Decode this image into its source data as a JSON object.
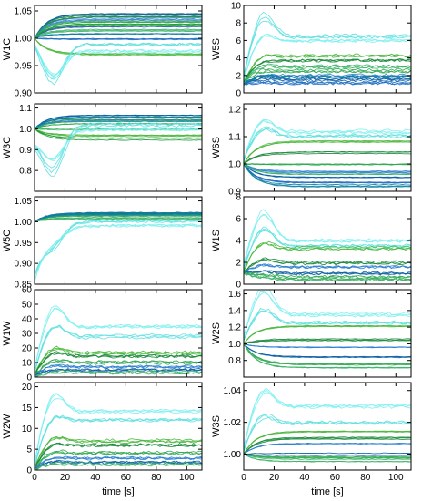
{
  "figure": {
    "xlabel": "time [s]"
  },
  "chart_data": [
    {
      "type": "line",
      "ylabel": "W1C",
      "xlim": [
        0,
        110
      ],
      "ylim": [
        0.9,
        1.06
      ],
      "xticks": [
        "0",
        "20",
        "40",
        "60",
        "80",
        "100"
      ],
      "yticks": [
        "0.90",
        "0.95",
        "1.00",
        "1.05"
      ],
      "ytick_values": [
        0.9,
        0.95,
        1.0,
        1.05
      ],
      "curves": [
        {
          "color": "#0b5fa5",
          "start": 1.0,
          "end": 1.045,
          "peak": 0.0
        },
        {
          "color": "#1a8a3a",
          "start": 1.0,
          "end": 1.04,
          "peak": 0.0
        },
        {
          "color": "#2e7fd0",
          "start": 1.0,
          "end": 1.035,
          "peak": 0.0
        },
        {
          "color": "#2fa84f",
          "start": 1.0,
          "end": 1.03,
          "peak": 0.0
        },
        {
          "color": "#2c5fa8",
          "start": 1.0,
          "end": 1.02,
          "peak": 0.0
        },
        {
          "color": "#3fb46a",
          "start": 1.0,
          "end": 1.015,
          "peak": 0.0
        },
        {
          "color": "#0b7fa0",
          "start": 1.0,
          "end": 1.01,
          "peak": 0.0
        },
        {
          "color": "#1f6ec4",
          "start": 1.0,
          "end": 1.0,
          "peak": 0.0
        },
        {
          "color": "#4ab83c",
          "start": 1.0,
          "end": 0.97,
          "peak": 0.0
        },
        {
          "color": "#5fe0e0",
          "start": 1.0,
          "end": 0.99,
          "peak": -0.07
        },
        {
          "color": "#7ff0f0",
          "start": 1.0,
          "end": 0.975,
          "peak": -0.05
        },
        {
          "color": "#1f9c3a",
          "start": 1.0,
          "end": 1.025,
          "peak": 0.0
        }
      ]
    },
    {
      "type": "line",
      "ylabel": "W5S",
      "xlim": [
        0,
        110
      ],
      "ylim": [
        0,
        10
      ],
      "xticks": [
        "0",
        "20",
        "40",
        "60",
        "80",
        "100"
      ],
      "yticks": [
        "0",
        "2",
        "4",
        "6",
        "8",
        "10"
      ],
      "ytick_values": [
        0,
        2,
        4,
        6,
        8,
        10
      ],
      "curves": [
        {
          "color": "#5fe0e0",
          "start": 1.0,
          "end": 6.5,
          "peak": 3.5
        },
        {
          "color": "#7ff0f0",
          "start": 1.0,
          "end": 6.0,
          "peak": 1.5
        },
        {
          "color": "#4ab83c",
          "start": 1.0,
          "end": 4.2,
          "peak": 0.6
        },
        {
          "color": "#1a8a3a",
          "start": 1.0,
          "end": 3.8,
          "peak": 0.3
        },
        {
          "color": "#2fa84f",
          "start": 1.0,
          "end": 2.5,
          "peak": 0.3
        },
        {
          "color": "#2e7fd0",
          "start": 1.0,
          "end": 2.0,
          "peak": 0.2
        },
        {
          "color": "#0b5fa5",
          "start": 1.0,
          "end": 1.5,
          "peak": 0.2
        },
        {
          "color": "#1f6ec4",
          "start": 1.0,
          "end": 1.2,
          "peak": 0.1
        },
        {
          "color": "#0b7fa0",
          "start": 1.0,
          "end": 1.8,
          "peak": 0.3
        },
        {
          "color": "#3fb46a",
          "start": 1.0,
          "end": 3.0,
          "peak": 0.5
        }
      ]
    },
    {
      "type": "line",
      "ylabel": "W3C",
      "xlim": [
        0,
        110
      ],
      "ylim": [
        0.7,
        1.12
      ],
      "xticks": [
        "0",
        "20",
        "40",
        "60",
        "80",
        "100"
      ],
      "yticks": [
        "0.8",
        "0.9",
        "1.0",
        "1.1"
      ],
      "ytick_values": [
        0.8,
        0.9,
        1.0,
        1.1
      ],
      "curves": [
        {
          "color": "#0b5fa5",
          "start": 1.0,
          "end": 1.06,
          "peak": 0.0
        },
        {
          "color": "#1a8a3a",
          "start": 1.0,
          "end": 1.05,
          "peak": 0.0
        },
        {
          "color": "#2e7fd0",
          "start": 1.0,
          "end": 1.04,
          "peak": 0.0
        },
        {
          "color": "#2fa84f",
          "start": 1.0,
          "end": 1.03,
          "peak": 0.0
        },
        {
          "color": "#3fb46a",
          "start": 1.0,
          "end": 1.0,
          "peak": 0.0
        },
        {
          "color": "#4ab83c",
          "start": 1.0,
          "end": 0.97,
          "peak": 0.0
        },
        {
          "color": "#5fe0e0",
          "start": 0.95,
          "end": 1.02,
          "peak": -0.2
        },
        {
          "color": "#7ff0f0",
          "start": 0.95,
          "end": 1.0,
          "peak": -0.15
        },
        {
          "color": "#0b7fa0",
          "start": 1.0,
          "end": 1.055,
          "peak": 0.0
        },
        {
          "color": "#1f9c3a",
          "start": 1.0,
          "end": 0.95,
          "peak": 0.0
        }
      ]
    },
    {
      "type": "line",
      "ylabel": "W6S",
      "xlim": [
        0,
        110
      ],
      "ylim": [
        0.9,
        1.22
      ],
      "xticks": [
        "0",
        "20",
        "40",
        "60",
        "80",
        "100"
      ],
      "yticks": [
        "0.9",
        "1.0",
        "1.1",
        "1.2"
      ],
      "ytick_values": [
        0.9,
        1.0,
        1.1,
        1.2
      ],
      "curves": [
        {
          "color": "#7ff0f0",
          "start": 1.0,
          "end": 1.12,
          "peak": 0.06
        },
        {
          "color": "#5fe0e0",
          "start": 1.0,
          "end": 1.1,
          "peak": 0.05
        },
        {
          "color": "#4ab83c",
          "start": 1.0,
          "end": 1.08,
          "peak": 0.0
        },
        {
          "color": "#1a8a3a",
          "start": 1.0,
          "end": 1.04,
          "peak": 0.0
        },
        {
          "color": "#2fa84f",
          "start": 1.0,
          "end": 1.0,
          "peak": 0.0
        },
        {
          "color": "#2e7fd0",
          "start": 1.0,
          "end": 0.97,
          "peak": 0.0
        },
        {
          "color": "#0b5fa5",
          "start": 1.0,
          "end": 0.95,
          "peak": 0.0
        },
        {
          "color": "#1f6ec4",
          "start": 1.0,
          "end": 0.93,
          "peak": 0.0
        },
        {
          "color": "#0b7fa0",
          "start": 1.0,
          "end": 0.92,
          "peak": 0.0
        },
        {
          "color": "#3fb46a",
          "start": 1.0,
          "end": 0.96,
          "peak": 0.0
        }
      ]
    },
    {
      "type": "line",
      "ylabel": "W5C",
      "xlim": [
        0,
        110
      ],
      "ylim": [
        0.85,
        1.06
      ],
      "xticks": [
        "0",
        "20",
        "40",
        "60",
        "80",
        "100"
      ],
      "yticks": [
        "0.85",
        "0.90",
        "0.95",
        "1.00",
        "1.05"
      ],
      "ytick_values": [
        0.85,
        0.9,
        0.95,
        1.0,
        1.05
      ],
      "curves": [
        {
          "color": "#0b5fa5",
          "start": 1.0,
          "end": 1.02,
          "peak": 0.0
        },
        {
          "color": "#1a8a3a",
          "start": 1.0,
          "end": 1.018,
          "peak": 0.0
        },
        {
          "color": "#2e7fd0",
          "start": 1.0,
          "end": 1.015,
          "peak": 0.0
        },
        {
          "color": "#2fa84f",
          "start": 1.0,
          "end": 1.012,
          "peak": 0.0
        },
        {
          "color": "#3fb46a",
          "start": 1.0,
          "end": 1.01,
          "peak": 0.0
        },
        {
          "color": "#5fe0e0",
          "start": 0.88,
          "end": 1.0,
          "peak": -0.04
        },
        {
          "color": "#7ff0f0",
          "start": 0.86,
          "end": 0.99,
          "peak": -0.02
        },
        {
          "color": "#0b7fa0",
          "start": 1.0,
          "end": 1.02,
          "peak": 0.0
        }
      ]
    },
    {
      "type": "line",
      "ylabel": "W1S",
      "xlim": [
        0,
        110
      ],
      "ylim": [
        0,
        8
      ],
      "xticks": [
        "0",
        "20",
        "40",
        "60",
        "80",
        "100"
      ],
      "yticks": [
        "0",
        "2",
        "4",
        "6",
        "8"
      ],
      "ytick_values": [
        0,
        2,
        4,
        6,
        8
      ],
      "curves": [
        {
          "color": "#7ff0f0",
          "start": 1.0,
          "end": 4.0,
          "peak": 3.0
        },
        {
          "color": "#5fe0e0",
          "start": 1.0,
          "end": 3.5,
          "peak": 2.0
        },
        {
          "color": "#4ab83c",
          "start": 1.0,
          "end": 3.3,
          "peak": 0.8
        },
        {
          "color": "#1a8a3a",
          "start": 1.0,
          "end": 2.0,
          "peak": 0.5
        },
        {
          "color": "#2e7fd0",
          "start": 1.0,
          "end": 1.6,
          "peak": 0.3
        },
        {
          "color": "#0b5fa5",
          "start": 1.0,
          "end": 1.0,
          "peak": 0.2
        },
        {
          "color": "#2fa84f",
          "start": 1.0,
          "end": 0.6,
          "peak": 0.2
        },
        {
          "color": "#3fb46a",
          "start": 1.0,
          "end": 0.4,
          "peak": 0.1
        }
      ]
    },
    {
      "type": "line",
      "ylabel": "W1W",
      "xlim": [
        0,
        110
      ],
      "ylim": [
        0,
        60
      ],
      "xticks": [
        "0",
        "20",
        "40",
        "60",
        "80",
        "100"
      ],
      "yticks": [
        "0",
        "10",
        "20",
        "30",
        "40",
        "50",
        "60"
      ],
      "ytick_values": [
        0,
        10,
        20,
        30,
        40,
        50,
        60
      ],
      "curves": [
        {
          "color": "#7ff0f0",
          "start": 0.0,
          "end": 35.0,
          "peak": 20.0
        },
        {
          "color": "#5fe0e0",
          "start": 0.0,
          "end": 28.0,
          "peak": 12.0
        },
        {
          "color": "#4ab83c",
          "start": 0.0,
          "end": 17.0,
          "peak": 6.0
        },
        {
          "color": "#1a8a3a",
          "start": 0.0,
          "end": 14.0,
          "peak": 5.0
        },
        {
          "color": "#2fa84f",
          "start": 0.0,
          "end": 10.0,
          "peak": 3.0
        },
        {
          "color": "#2e7fd0",
          "start": 0.0,
          "end": 7.0,
          "peak": 2.0
        },
        {
          "color": "#0b5fa5",
          "start": 0.0,
          "end": 5.0,
          "peak": 1.0
        },
        {
          "color": "#3fb46a",
          "start": 0.0,
          "end": 3.0,
          "peak": 1.0
        }
      ]
    },
    {
      "type": "line",
      "ylabel": "W2S",
      "xlim": [
        0,
        110
      ],
      "ylim": [
        0.6,
        1.65
      ],
      "xticks": [
        "0",
        "20",
        "40",
        "60",
        "80",
        "100"
      ],
      "yticks": [
        "0.8",
        "1.0",
        "1.2",
        "1.4",
        "1.6"
      ],
      "ytick_values": [
        0.8,
        1.0,
        1.2,
        1.4,
        1.6
      ],
      "curves": [
        {
          "color": "#7ff0f0",
          "start": 1.0,
          "end": 1.35,
          "peak": 0.4
        },
        {
          "color": "#5fe0e0",
          "start": 1.0,
          "end": 1.25,
          "peak": 0.2
        },
        {
          "color": "#4ab83c",
          "start": 1.0,
          "end": 1.2,
          "peak": 0.0
        },
        {
          "color": "#1a8a3a",
          "start": 1.0,
          "end": 1.05,
          "peak": 0.0
        },
        {
          "color": "#2e7fd0",
          "start": 1.0,
          "end": 0.97,
          "peak": 0.0
        },
        {
          "color": "#0b5fa5",
          "start": 1.0,
          "end": 0.85,
          "peak": 0.0
        },
        {
          "color": "#2fa84f",
          "start": 1.0,
          "end": 0.75,
          "peak": 0.0
        },
        {
          "color": "#3fb46a",
          "start": 1.0,
          "end": 0.72,
          "peak": 0.0
        }
      ]
    },
    {
      "type": "line",
      "ylabel": "W2W",
      "xlim": [
        0,
        110
      ],
      "ylim": [
        0,
        21
      ],
      "xticks": [
        "0",
        "20",
        "40",
        "60",
        "80",
        "100"
      ],
      "yticks": [
        "0",
        "5",
        "10",
        "15",
        "20"
      ],
      "ytick_values": [
        0,
        5,
        10,
        15,
        20
      ],
      "curves": [
        {
          "color": "#7ff0f0",
          "start": 0.0,
          "end": 14.0,
          "peak": 6.0
        },
        {
          "color": "#5fe0e0",
          "start": 0.0,
          "end": 12.0,
          "peak": 3.0
        },
        {
          "color": "#4ab83c",
          "start": 0.0,
          "end": 7.0,
          "peak": 2.0
        },
        {
          "color": "#1a8a3a",
          "start": 0.0,
          "end": 6.0,
          "peak": 1.5
        },
        {
          "color": "#2fa84f",
          "start": 0.0,
          "end": 4.0,
          "peak": 1.0
        },
        {
          "color": "#2e7fd0",
          "start": 0.0,
          "end": 3.0,
          "peak": 0.5
        },
        {
          "color": "#0b5fa5",
          "start": 0.0,
          "end": 2.0,
          "peak": 0.5
        },
        {
          "color": "#3fb46a",
          "start": 0.0,
          "end": 1.5,
          "peak": 0.3
        }
      ]
    },
    {
      "type": "line",
      "ylabel": "W3S",
      "xlim": [
        0,
        110
      ],
      "ylim": [
        0.99,
        1.045
      ],
      "xticks": [
        "0",
        "20",
        "40",
        "60",
        "80",
        "100"
      ],
      "yticks": [
        "1.00",
        "1.02",
        "1.04"
      ],
      "ytick_values": [
        1.0,
        1.02,
        1.04
      ],
      "curves": [
        {
          "color": "#7ff0f0",
          "start": 1.0,
          "end": 1.03,
          "peak": 0.015
        },
        {
          "color": "#5fe0e0",
          "start": 1.0,
          "end": 1.02,
          "peak": 0.008
        },
        {
          "color": "#4ab83c",
          "start": 1.0,
          "end": 1.014,
          "peak": 0.0
        },
        {
          "color": "#1a8a3a",
          "start": 1.0,
          "end": 1.01,
          "peak": 0.0
        },
        {
          "color": "#2e7fd0",
          "start": 1.0,
          "end": 1.006,
          "peak": 0.0
        },
        {
          "color": "#0b5fa5",
          "start": 1.0,
          "end": 1.0,
          "peak": 0.0
        },
        {
          "color": "#2fa84f",
          "start": 1.0,
          "end": 0.998,
          "peak": 0.0
        },
        {
          "color": "#3fb46a",
          "start": 1.0,
          "end": 0.996,
          "peak": 0.0
        }
      ]
    }
  ]
}
